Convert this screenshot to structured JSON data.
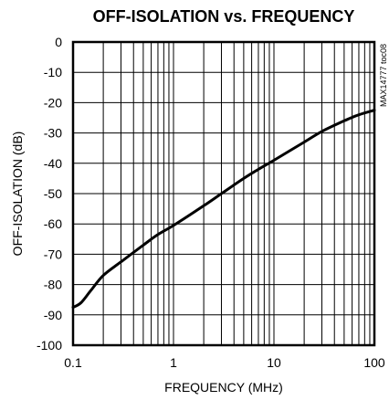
{
  "chart_data": {
    "type": "line",
    "title": "OFF-ISOLATION vs. FREQUENCY",
    "xlabel": "FREQUENCY (MHz)",
    "ylabel": "OFF-ISOLATION (dB)",
    "x_scale": "log",
    "xlim": [
      0.1,
      100
    ],
    "ylim": [
      -100,
      0
    ],
    "grid": true,
    "x_ticks": [
      "0.1",
      "1",
      "10",
      "100"
    ],
    "y_ticks": [
      "0",
      "-10",
      "-20",
      "-30",
      "-40",
      "-50",
      "-60",
      "-70",
      "-80",
      "-90",
      "-100"
    ],
    "annotation": "MAX14777 toc08",
    "series": [
      {
        "x": [
          0.1,
          0.12,
          0.15,
          0.2,
          0.3,
          0.5,
          0.7,
          1,
          2,
          3,
          5,
          7,
          10,
          20,
          30,
          50,
          70,
          100
        ],
        "y": [
          -87.5,
          -86,
          -82,
          -77,
          -72.5,
          -67,
          -63.5,
          -60.5,
          -54,
          -50,
          -45,
          -42,
          -39,
          -33,
          -29.5,
          -26,
          -24,
          -22.5
        ]
      }
    ]
  },
  "colors": {
    "line": "#000000",
    "grid": "#000000",
    "background": "#ffffff"
  }
}
